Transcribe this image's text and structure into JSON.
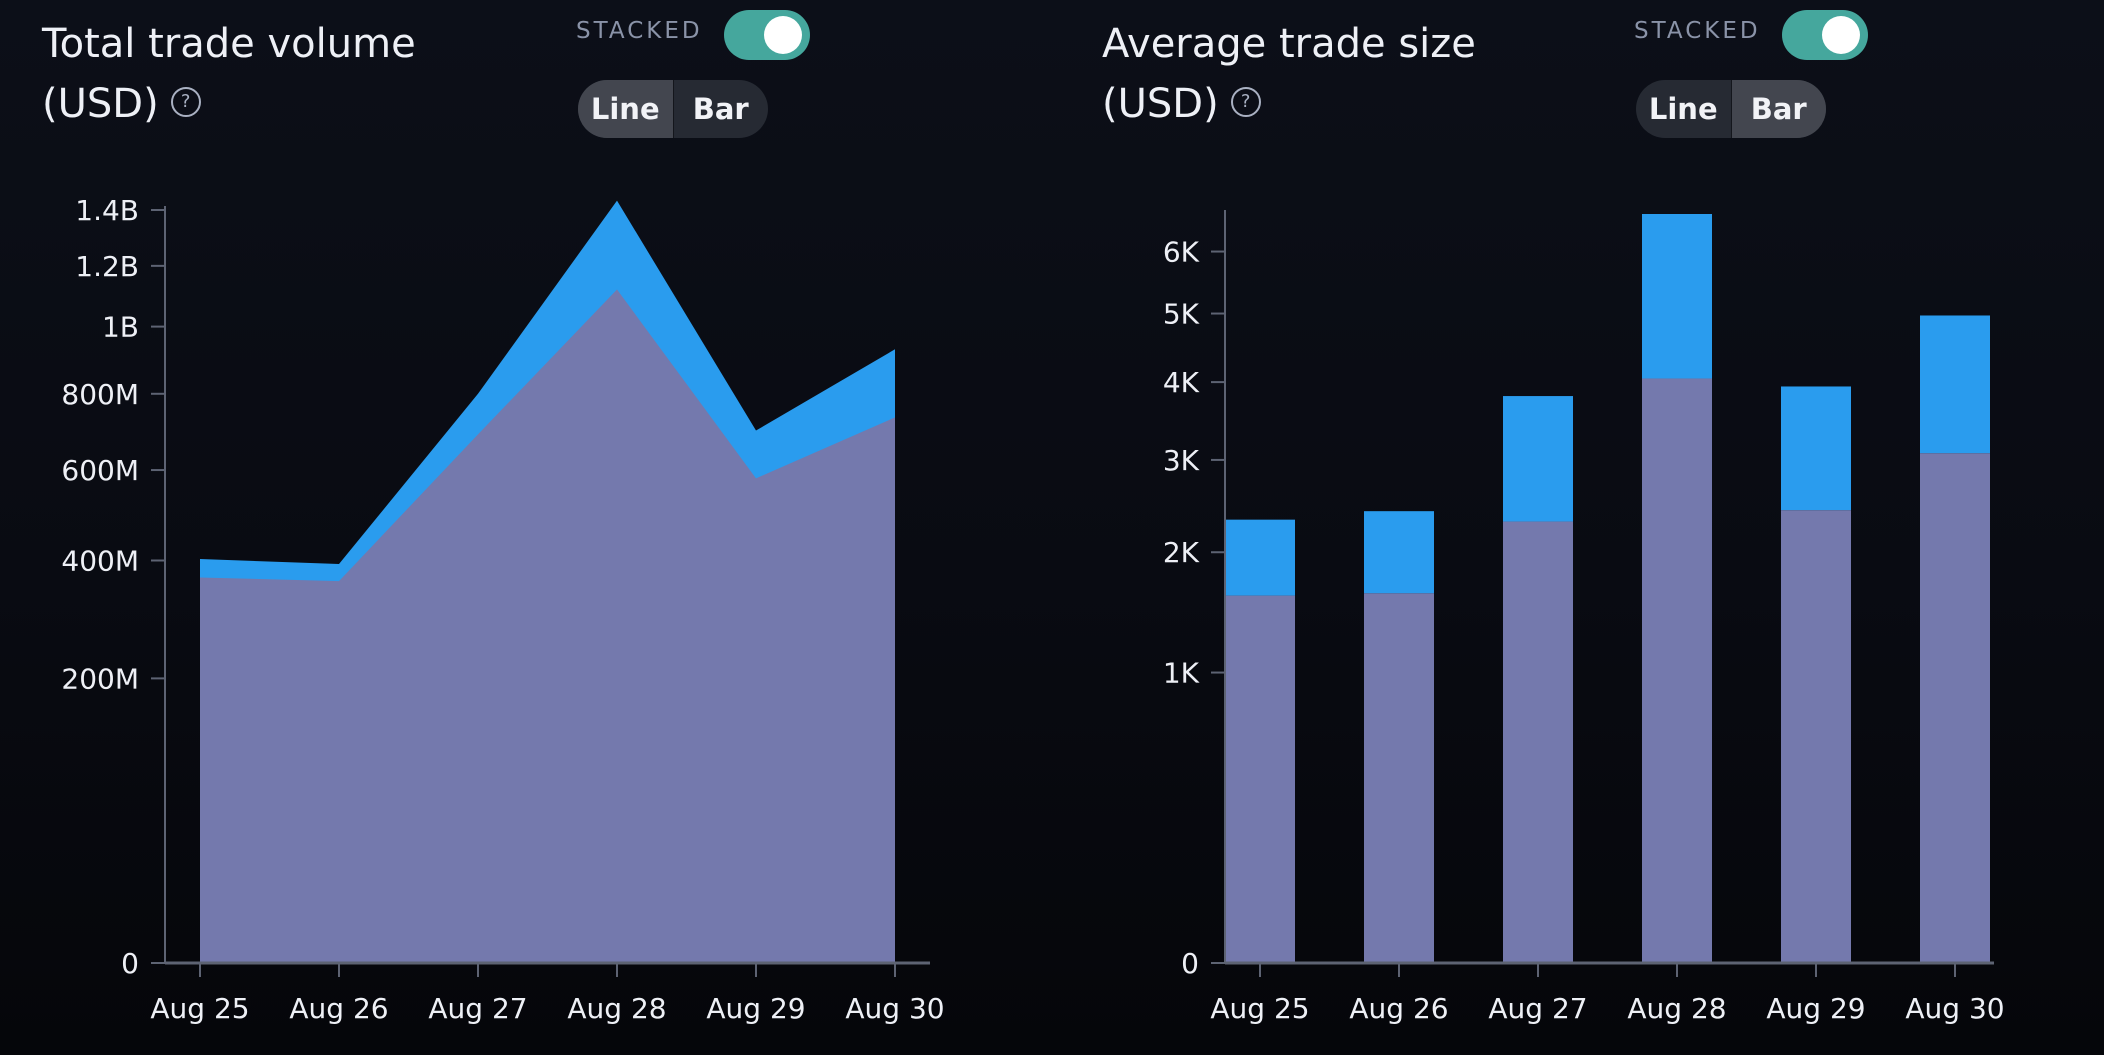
{
  "volume_panel": {
    "title_line1": "Total trade volume",
    "title_line2": "(USD)",
    "help_icon": "question-mark-circle-icon",
    "stacked_label": "STACKED",
    "stacked_on": true,
    "view_options": [
      "Line",
      "Bar"
    ],
    "selected_view": "Line"
  },
  "size_panel": {
    "title_line1": "Average trade size",
    "title_line2": "(USD)",
    "help_icon": "question-mark-circle-icon",
    "stacked_label": "STACKED",
    "stacked_on": true,
    "view_options": [
      "Line",
      "Bar"
    ],
    "selected_view": "Bar"
  },
  "colors": {
    "series_bottom": "#7479ad",
    "series_top": "#2a9cee",
    "toggle_on": "#45a79d"
  },
  "chart_data": [
    {
      "type": "area",
      "stacked": true,
      "scale": "sqrt",
      "categories": [
        "Aug 25",
        "Aug 26",
        "Aug 27",
        "Aug 28",
        "Aug 29",
        "Aug 30"
      ],
      "ticks": [
        0,
        200000000,
        400000000,
        600000000,
        800000000,
        1000000000,
        1200000000,
        1400000000
      ],
      "tick_labels": [
        "0",
        "200M",
        "400M",
        "600M",
        "800M",
        "1B",
        "1.2B",
        "1.4B"
      ],
      "ylim": [
        0,
        1400000000
      ],
      "series": [
        {
          "values": [
            367000000,
            360000000,
            690000000,
            1120000000,
            580000000,
            735000000
          ]
        },
        {
          "values": [
            36000000,
            33000000,
            110000000,
            315000000,
            120000000,
            195000000
          ]
        }
      ]
    },
    {
      "type": "bar",
      "stacked": true,
      "scale": "sqrt",
      "categories": [
        "Aug 25",
        "Aug 26",
        "Aug 27",
        "Aug 28",
        "Aug 29",
        "Aug 30"
      ],
      "ticks": [
        0,
        1000,
        2000,
        3000,
        4000,
        5000,
        6000
      ],
      "tick_labels": [
        "0",
        "1K",
        "2K",
        "3K",
        "4K",
        "5K",
        "6K"
      ],
      "ylim": [
        0,
        6650
      ],
      "series": [
        {
          "values": [
            1600,
            1620,
            2310,
            4050,
            2430,
            3080
          ]
        },
        {
          "values": [
            730,
            800,
            1500,
            2600,
            1510,
            1890
          ]
        }
      ]
    }
  ]
}
